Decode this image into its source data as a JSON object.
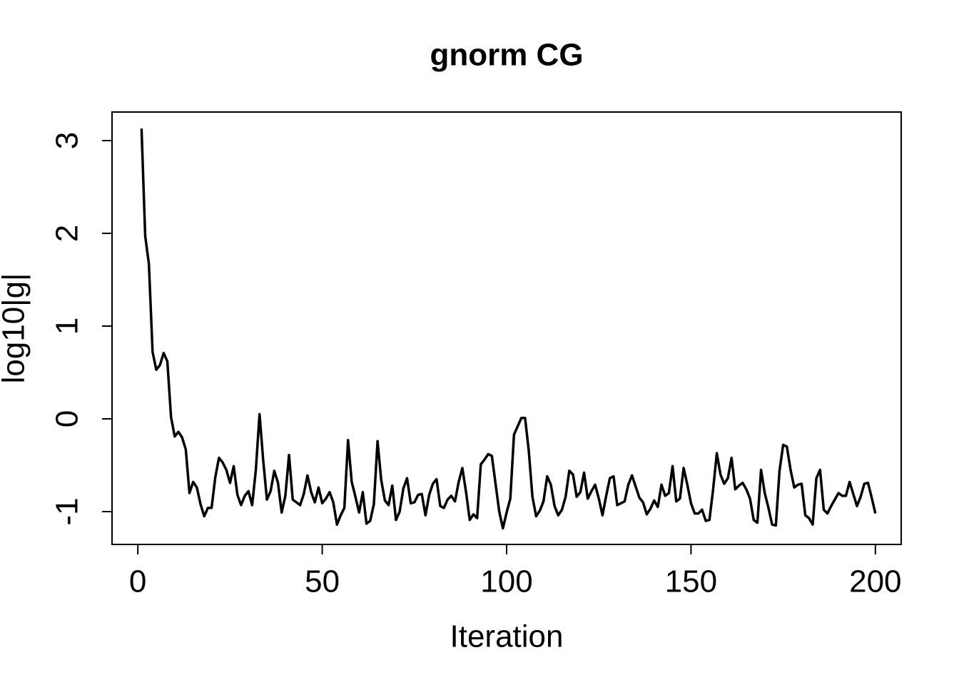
{
  "chart_data": {
    "type": "line",
    "title": "gnorm CG",
    "x_label": "Iteration",
    "y_label": "log10|g|",
    "x": [
      1,
      2,
      3,
      4,
      5,
      6,
      7,
      8,
      9,
      10,
      11,
      12,
      13,
      14,
      15,
      16,
      17,
      18,
      19,
      20,
      21,
      22,
      23,
      24,
      25,
      26,
      27,
      28,
      29,
      30,
      31,
      32,
      33,
      34,
      35,
      36,
      37,
      38,
      39,
      40,
      41,
      42,
      43,
      44,
      45,
      46,
      47,
      48,
      49,
      50,
      51,
      52,
      53,
      54,
      55,
      56,
      57,
      58,
      59,
      60,
      61,
      62,
      63,
      64,
      65,
      66,
      67,
      68,
      69,
      70,
      71,
      72,
      73,
      74,
      75,
      76,
      77,
      78,
      79,
      80,
      81,
      82,
      83,
      84,
      85,
      86,
      87,
      88,
      89,
      90,
      91,
      92,
      93,
      94,
      95,
      96,
      97,
      98,
      99,
      100,
      101,
      102,
      103,
      104,
      105,
      106,
      107,
      108,
      109,
      110,
      111,
      112,
      113,
      114,
      115,
      116,
      117,
      118,
      119,
      120,
      121,
      122,
      123,
      124,
      125,
      126,
      127,
      128,
      129,
      130,
      131,
      132,
      133,
      134,
      135,
      136,
      137,
      138,
      139,
      140,
      141,
      142,
      143,
      144,
      145,
      146,
      147,
      148,
      149,
      150,
      151,
      152,
      153,
      154,
      155,
      156,
      157,
      158,
      159,
      160,
      161,
      162,
      163,
      164,
      165,
      166,
      167,
      168,
      169,
      170,
      171,
      172,
      173,
      174,
      175,
      176,
      177,
      178,
      179,
      180,
      181,
      182,
      183,
      184,
      185,
      186,
      187,
      188,
      189,
      190,
      191,
      192,
      193,
      194,
      195,
      196,
      197,
      198,
      199,
      200
    ],
    "series": [
      {
        "color": "#000000",
        "values": [
          3.13,
          1.97,
          1.67,
          0.72,
          0.53,
          0.58,
          0.71,
          0.62,
          0.02,
          -0.19,
          -0.14,
          -0.2,
          -0.33,
          -0.8,
          -0.68,
          -0.74,
          -0.92,
          -1.05,
          -0.96,
          -0.96,
          -0.63,
          -0.42,
          -0.47,
          -0.55,
          -0.69,
          -0.51,
          -0.82,
          -0.93,
          -0.83,
          -0.78,
          -0.93,
          -0.55,
          0.05,
          -0.45,
          -0.87,
          -0.78,
          -0.56,
          -0.69,
          -1.01,
          -0.83,
          -0.39,
          -0.87,
          -0.9,
          -0.93,
          -0.81,
          -0.61,
          -0.79,
          -0.9,
          -0.74,
          -0.91,
          -0.86,
          -0.79,
          -0.9,
          -1.14,
          -1.04,
          -0.96,
          -0.23,
          -0.68,
          -0.84,
          -1.01,
          -0.79,
          -1.13,
          -1.1,
          -0.92,
          -0.24,
          -0.66,
          -0.88,
          -0.93,
          -0.72,
          -1.09,
          -1.0,
          -0.75,
          -0.64,
          -0.91,
          -0.9,
          -0.82,
          -0.81,
          -1.04,
          -0.82,
          -0.7,
          -0.65,
          -0.94,
          -0.96,
          -0.87,
          -0.83,
          -0.89,
          -0.68,
          -0.53,
          -0.79,
          -1.09,
          -1.03,
          -1.07,
          -0.49,
          -0.44,
          -0.38,
          -0.4,
          -0.7,
          -1.0,
          -1.18,
          -1.01,
          -0.86,
          -0.17,
          -0.08,
          0.01,
          0.01,
          -0.34,
          -0.84,
          -1.05,
          -0.99,
          -0.89,
          -0.62,
          -0.71,
          -0.94,
          -1.04,
          -0.98,
          -0.84,
          -0.56,
          -0.6,
          -0.84,
          -0.79,
          -0.58,
          -0.86,
          -0.78,
          -0.71,
          -0.86,
          -1.04,
          -0.83,
          -0.64,
          -0.62,
          -0.93,
          -0.91,
          -0.89,
          -0.71,
          -0.61,
          -0.73,
          -0.85,
          -0.9,
          -1.03,
          -0.97,
          -0.88,
          -0.95,
          -0.71,
          -0.83,
          -0.8,
          -0.51,
          -0.89,
          -0.86,
          -0.53,
          -0.71,
          -0.91,
          -1.02,
          -1.02,
          -0.98,
          -1.1,
          -1.09,
          -0.76,
          -0.37,
          -0.6,
          -0.7,
          -0.64,
          -0.42,
          -0.76,
          -0.72,
          -0.69,
          -0.76,
          -0.86,
          -1.09,
          -1.12,
          -0.55,
          -0.8,
          -0.96,
          -1.14,
          -1.15,
          -0.56,
          -0.28,
          -0.3,
          -0.55,
          -0.74,
          -0.71,
          -0.7,
          -1.04,
          -1.07,
          -1.14,
          -0.64,
          -0.55,
          -0.98,
          -1.02,
          -0.94,
          -0.87,
          -0.8,
          -0.83,
          -0.83,
          -0.68,
          -0.81,
          -0.94,
          -0.84,
          -0.7,
          -0.69,
          -0.85,
          -1.02
        ]
      }
    ],
    "xlim": [
      -7,
      207
    ],
    "xticks": [
      0,
      50,
      100,
      150,
      200
    ],
    "ylim": [
      -1.354,
      3.308
    ],
    "yticks": [
      -1,
      0,
      1,
      2,
      3
    ]
  }
}
